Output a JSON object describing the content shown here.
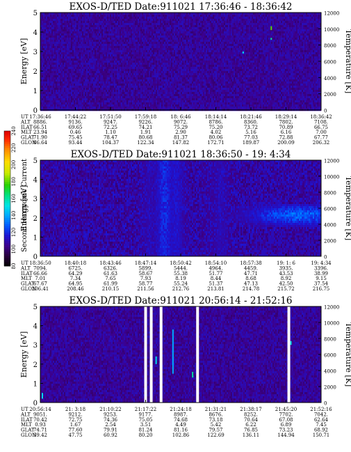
{
  "chart_data": [
    {
      "type": "heatmap",
      "title": "EXOS-D/TED   Date:911021   17:36:46 - 18:36:42",
      "ylabel": "Energy [eV]",
      "y2label": "Temperature [K]",
      "ylim": [
        0,
        5
      ],
      "y2lim": [
        0,
        12000
      ],
      "yticks": [
        "0",
        "1",
        "2",
        "3",
        "4",
        "5"
      ],
      "y2ticks": [
        "0",
        "2000",
        "4000",
        "6000",
        "8000",
        "10000",
        "12000"
      ],
      "intensity": "low",
      "features": [
        {
          "t": 0.82,
          "e0": 4.1,
          "e1": 4.3,
          "v": 180
        },
        {
          "t": 0.82,
          "e0": 3.6,
          "e1": 3.7,
          "v": 160
        },
        {
          "t": 0.72,
          "e0": 2.9,
          "e1": 3.0,
          "v": 150
        }
      ],
      "row_labels": [
        "UT",
        "ALT",
        "ILAT",
        "MLT",
        "GLAT",
        "GLON"
      ],
      "columns": [
        [
          "17:36:46",
          "8886.",
          "66.51",
          "23.94",
          "71.90",
          "86.64"
        ],
        [
          "17:44:22",
          "9136.",
          "69.65",
          "0.46",
          "75.45",
          "93.44"
        ],
        [
          "17:51:50",
          "9247.",
          "72.25",
          "1.10",
          "78.47",
          "104.37"
        ],
        [
          "17:59:18",
          "9226.",
          "74.21",
          "1.91",
          "80.68",
          "122.34"
        ],
        [
          "18: 6:46",
          "9072.",
          "75.29",
          "2.90",
          "81.37",
          "147.82"
        ],
        [
          "18:14:14",
          "8786.",
          "75.20",
          "4.02",
          "80.06",
          "172.71"
        ],
        [
          "18:21:46",
          "8360.",
          "73.72",
          "5.16",
          "77.03",
          "189.87"
        ],
        [
          "18:29:14",
          "7802.",
          "70.89",
          "6.16",
          "72.88",
          "200.09"
        ],
        [
          "18:36:42",
          "7108.",
          "66.75",
          "7.00",
          "67.77",
          "206.32"
        ]
      ]
    },
    {
      "type": "heatmap",
      "title": "EXOS-D/TED   Date:911021   18:36:50 - 19: 4:34",
      "ylabel": "Energy [eV]",
      "y2label": "Temperature [K]",
      "ylim": [
        0,
        5
      ],
      "y2lim": [
        0,
        12000
      ],
      "yticks": [
        "0",
        "1",
        "2",
        "3",
        "4",
        "5"
      ],
      "y2ticks": [
        "0",
        "2000",
        "4000",
        "6000",
        "8000",
        "10000",
        "12000"
      ],
      "intensity": "high",
      "features": [
        {
          "t": 0.39,
          "e0": 0.0,
          "e1": 5.0,
          "v": 110
        },
        {
          "t": 0.44,
          "e0": 0.0,
          "e1": 5.0,
          "v": 120
        },
        {
          "t": 0.48,
          "e0": 0.0,
          "e1": 5.0,
          "v": 115
        },
        {
          "t": 0.6,
          "e0": 0.0,
          "e1": 5.0,
          "v": 105
        },
        {
          "t": 0.64,
          "e0": 0.0,
          "e1": 5.0,
          "v": 110
        },
        {
          "t": 0.8,
          "e0": 1.3,
          "e1": 3.0,
          "v": 90
        },
        {
          "t": 0.92,
          "e0": 1.6,
          "e1": 2.8,
          "v": 130
        }
      ],
      "colorbar": {
        "label": "Second Harmonic Current",
        "ticks": [
          "80",
          "100",
          "120",
          "140",
          "160",
          "180",
          "200",
          "220",
          "240"
        ]
      },
      "row_labels": [
        "UT",
        "ALT",
        "ILAT",
        "MLT",
        "GLAT",
        "GLON"
      ],
      "columns": [
        [
          "18:36:50",
          "7094.",
          "66.66",
          "7.01",
          "67.67",
          "206.41"
        ],
        [
          "18:40:18",
          "6725.",
          "64.29",
          "7.34",
          "64.95",
          "208.46"
        ],
        [
          "18:43:46",
          "6326.",
          "61.63",
          "7.65",
          "61.99",
          "210.15"
        ],
        [
          "18:47:14",
          "5899.",
          "58.67",
          "7.93",
          "58.77",
          "211.56"
        ],
        [
          "18:50:42",
          "5444.",
          "55.38",
          "8.19",
          "55.24",
          "212.76"
        ],
        [
          "18:54:10",
          "4964.",
          "51.77",
          "8.44",
          "51.37",
          "213.81"
        ],
        [
          "18:57:38",
          "4459.",
          "47.71",
          "8.68",
          "47.13",
          "214.78"
        ],
        [
          "19: 1: 6",
          "3935.",
          "43.53",
          "8.92",
          "42.50",
          "215.72"
        ],
        [
          "19: 4:34",
          "3396.",
          "38.99",
          "9.15",
          "37.54",
          "216.75"
        ]
      ]
    },
    {
      "type": "heatmap",
      "title": "EXOS-D/TED   Date:911021   20:56:14 - 21:52:16",
      "ylabel": "Energy [eV]",
      "y2label": "Temperature [K]",
      "ylim": [
        0,
        5
      ],
      "y2lim": [
        0,
        12000
      ],
      "yticks": [
        "0",
        "1",
        "2",
        "3",
        "4",
        "5"
      ],
      "y2ticks": [
        "0",
        "2000",
        "4000",
        "6000",
        "8000",
        "10000",
        "12000"
      ],
      "intensity": "low",
      "gaps": [
        0.375,
        0.395,
        0.43,
        0.56,
        0.885
      ],
      "features": [
        {
          "t": 0.005,
          "e0": 0.2,
          "e1": 0.5,
          "v": 150
        },
        {
          "t": 0.41,
          "e0": 2.0,
          "e1": 2.4,
          "v": 150
        },
        {
          "t": 0.47,
          "e0": 1.5,
          "e1": 3.8,
          "v": 140
        },
        {
          "t": 0.54,
          "e0": 1.3,
          "e1": 1.6,
          "v": 160
        },
        {
          "t": 0.89,
          "e0": 3.0,
          "e1": 3.2,
          "v": 150
        }
      ],
      "row_labels": [
        "UT",
        "ALT",
        "ILAT",
        "MLT",
        "GLAT",
        "GLON"
      ],
      "columns": [
        [
          "20:56:14",
          "9051.",
          "70.42",
          "0.93",
          "74.71",
          "39.42"
        ],
        [
          "21: 3:18",
          "9212.",
          "72.75",
          "1.67",
          "77.60",
          "47.75"
        ],
        [
          "21:10:22",
          "9253.",
          "74.36",
          "2.54",
          "79.91",
          "60.92"
        ],
        [
          "21:17:22",
          "9177.",
          "75.05",
          "3.51",
          "81.24",
          "80.20"
        ],
        [
          "21:24:18",
          "8987.",
          "74.68",
          "4.49",
          "81.16",
          "102.86"
        ],
        [
          "21:31:21",
          "8676.",
          "73.18",
          "5.42",
          "79.57",
          "122.69"
        ],
        [
          "21:38:17",
          "8252.",
          "70.64",
          "6.22",
          "76.85",
          "136.11"
        ],
        [
          "21:45:20",
          "7702.",
          "67.08",
          "6.89",
          "73.23",
          "144.94"
        ],
        [
          "21:52:16",
          "7042.",
          "62.64",
          "7.45",
          "68.92",
          "150.71"
        ]
      ]
    }
  ]
}
